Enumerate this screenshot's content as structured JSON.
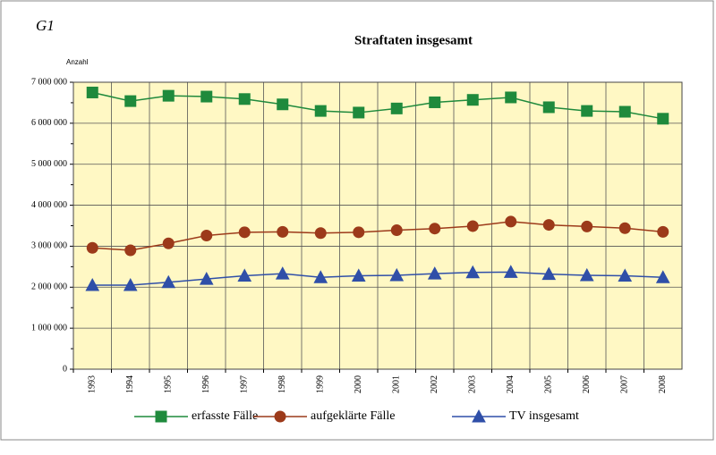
{
  "chart_data": {
    "type": "line",
    "label": "G1",
    "title": "Straftaten insgesamt",
    "y_label": "Anzahl",
    "categories": [
      "1993",
      "1994",
      "1995",
      "1996",
      "1997",
      "1998",
      "1999",
      "2000",
      "2001",
      "2002",
      "2003",
      "2004",
      "2005",
      "2006",
      "2007",
      "2008"
    ],
    "series": [
      {
        "name": "erfasste Fälle",
        "color": "#1f8a3c",
        "marker": "square",
        "values": [
          6750000,
          6540000,
          6670000,
          6650000,
          6590000,
          6460000,
          6300000,
          6260000,
          6360000,
          6510000,
          6570000,
          6630000,
          6390000,
          6300000,
          6280000,
          6110000
        ]
      },
      {
        "name": "aufgeklärte Fälle",
        "color": "#9c3a1a",
        "marker": "circle",
        "values": [
          2960000,
          2900000,
          3070000,
          3260000,
          3340000,
          3350000,
          3320000,
          3340000,
          3390000,
          3430000,
          3490000,
          3600000,
          3520000,
          3480000,
          3440000,
          3350000
        ]
      },
      {
        "name": "TV insgesamt",
        "color": "#2f4fa8",
        "marker": "triangle",
        "values": [
          2050000,
          2050000,
          2120000,
          2200000,
          2280000,
          2330000,
          2240000,
          2280000,
          2290000,
          2330000,
          2360000,
          2370000,
          2320000,
          2290000,
          2280000,
          2240000
        ]
      }
    ],
    "ylim": [
      0,
      7000000
    ],
    "yticks": [
      0,
      {
        "value": 1000000,
        "label": "1 000 000"
      },
      {
        "value": 2000000,
        "label": "2 000 000"
      },
      {
        "value": 3000000,
        "label": "3 000 000"
      },
      {
        "value": 4000000,
        "label": "4 000 000"
      },
      {
        "value": 5000000,
        "label": "5 000 000"
      },
      {
        "value": 6000000,
        "label": "6 000 000"
      },
      {
        "value": 7000000,
        "label": "7 000 000"
      }
    ],
    "grid": true,
    "plot_background": "#fff8c4",
    "legend": "bottom"
  }
}
